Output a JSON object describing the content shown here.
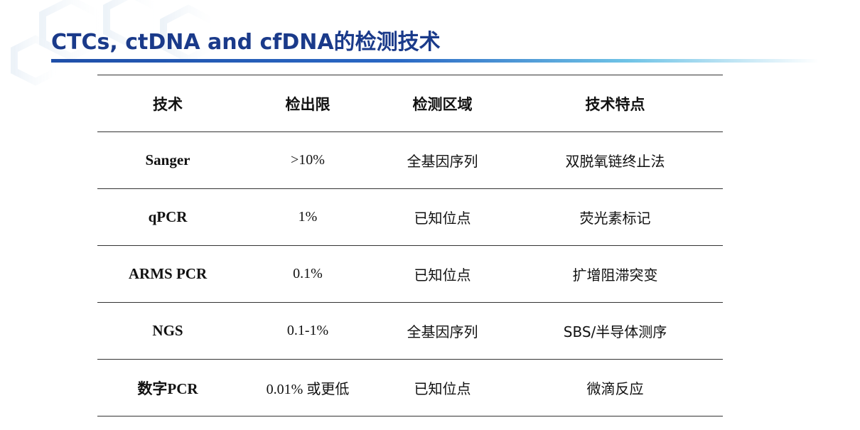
{
  "slide": {
    "title": "CTCs, ctDNA and cfDNA的检测技术",
    "accent_color": "#1a3a8a"
  },
  "table": {
    "headers": [
      "技术",
      "检出限",
      "检测区域",
      "技术特点"
    ],
    "rows": [
      [
        "Sanger",
        ">10%",
        "全基因序列",
        "双脱氧链终止法"
      ],
      [
        "qPCR",
        "1%",
        "已知位点",
        "荧光素标记"
      ],
      [
        "ARMS PCR",
        "0.1%",
        "已知位点",
        "扩增阻滞突变"
      ],
      [
        "NGS",
        "0.1-1%",
        "全基因序列",
        "SBS/半导体测序"
      ],
      [
        "数字PCR",
        "0.01% 或更低",
        "已知位点",
        "微滴反应"
      ]
    ]
  }
}
